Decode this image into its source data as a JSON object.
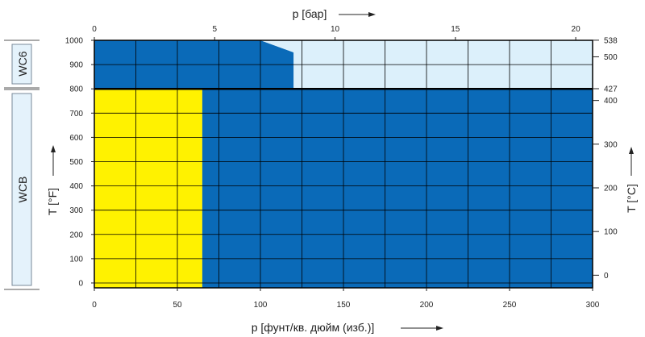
{
  "chart_data": {
    "type": "area",
    "materials": [
      "WC6",
      "WCB"
    ],
    "x_bottom": {
      "label": "p [фунт/кв. дюйм (изб.)]",
      "range": [
        0,
        300
      ],
      "ticks": [
        0,
        50,
        100,
        150,
        200,
        250,
        300
      ]
    },
    "x_top": {
      "label": "p [бар]",
      "range": [
        0,
        20.7
      ],
      "ticks": [
        0,
        5,
        10,
        15,
        20
      ]
    },
    "y_left": {
      "label": "T [°F]",
      "range": [
        -20,
        1000
      ],
      "ticks": [
        0,
        100,
        200,
        300,
        400,
        500,
        600,
        700,
        800,
        900,
        1000
      ]
    },
    "y_right": {
      "label": "T [°C]",
      "range": [
        -29,
        538
      ],
      "ticks": [
        0,
        100,
        200,
        300,
        400
      ],
      "special_ticks": [
        427,
        500,
        538
      ]
    },
    "boundary_temperature_f": 800,
    "regions": [
      {
        "material": "WC6",
        "fill": "dark_blue",
        "polygon_psi_f": [
          [
            0,
            800
          ],
          [
            0,
            1000
          ],
          [
            100,
            1000
          ],
          [
            120,
            950
          ],
          [
            120,
            800
          ]
        ]
      },
      {
        "material": "WC6",
        "fill": "light_blue",
        "polygon_psi_f": [
          [
            100,
            1000
          ],
          [
            300,
            1000
          ],
          [
            300,
            800
          ],
          [
            120,
            800
          ],
          [
            120,
            950
          ]
        ]
      },
      {
        "material": "WCB",
        "fill": "yellow",
        "polygon_psi_f": [
          [
            0,
            -20
          ],
          [
            0,
            800
          ],
          [
            65,
            800
          ],
          [
            65,
            -20
          ]
        ]
      },
      {
        "material": "WCB",
        "fill": "dark_blue",
        "polygon_psi_f": [
          [
            65,
            -20
          ],
          [
            65,
            800
          ],
          [
            300,
            800
          ],
          [
            300,
            -20
          ]
        ]
      }
    ],
    "grid": true
  },
  "colors": {
    "dark_blue": "#0a6ab8",
    "light_blue": "#dcf0fb",
    "yellow": "#fff200",
    "grid": "#000000",
    "label_box_fill": "#e4f2fb",
    "label_box_stroke": "#7a8a99"
  }
}
